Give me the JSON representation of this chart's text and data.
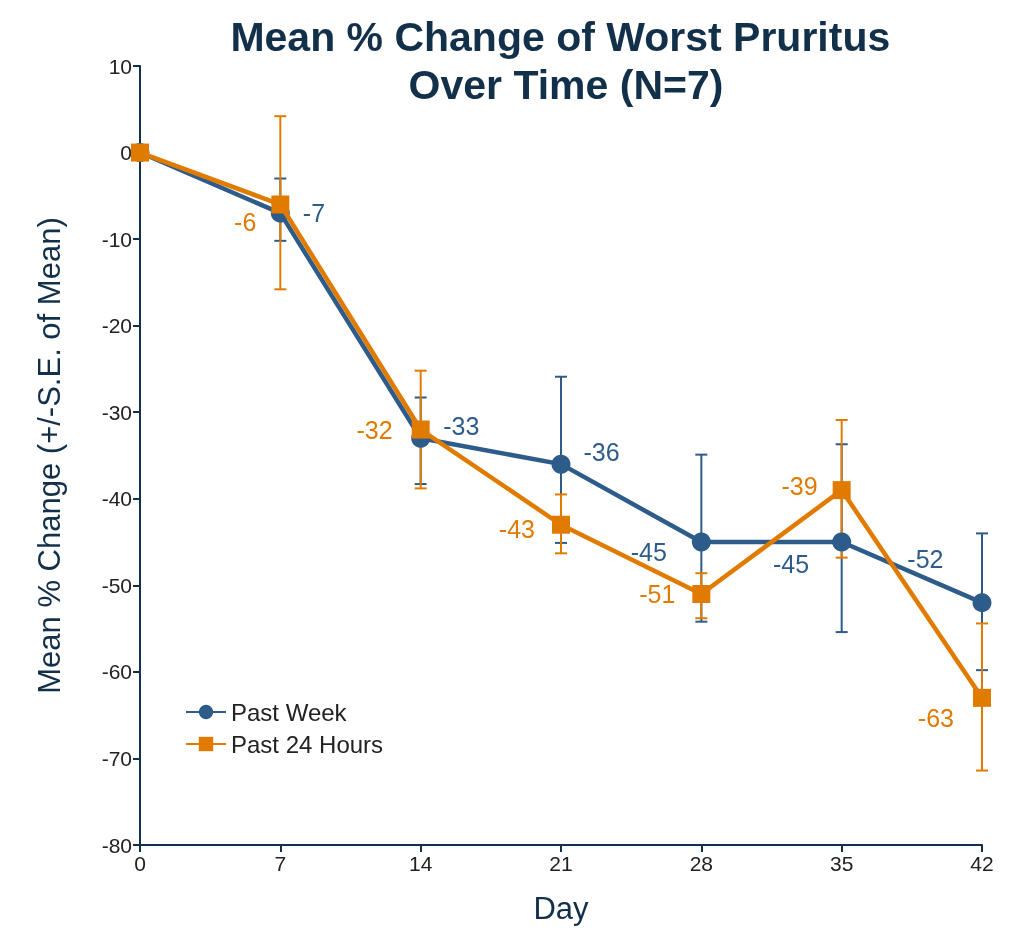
{
  "chart_data": {
    "type": "line",
    "title": "Mean % Change of Worst Pruritus Over Time (N=7)",
    "xlabel": "Day",
    "ylabel": "Mean % Change (+/-S.E. of Mean)",
    "x": [
      0,
      7,
      14,
      21,
      28,
      35,
      42
    ],
    "xlim": [
      0,
      42
    ],
    "xticks": [
      0,
      7,
      14,
      21,
      28,
      35,
      42
    ],
    "ylim": [
      -80,
      10
    ],
    "yticks": [
      -80,
      -70,
      -60,
      -50,
      -40,
      -30,
      -20,
      -10,
      0,
      10
    ],
    "grid": false,
    "legend": "bottom left",
    "line_style": "solid",
    "series": [
      {
        "name": "Past Week",
        "color": "#2e5c8a",
        "marker": "circle",
        "values": [
          0,
          -7,
          -33,
          -36,
          -45,
          -45,
          -52
        ],
        "value_labels": [
          null,
          "-7",
          "-33",
          "-36",
          "-45",
          "-45",
          "-52"
        ],
        "errors": [
          null,
          [
            -10.2,
            -3.0
          ],
          [
            -38.3,
            -28.3
          ],
          [
            -45.1,
            -25.9
          ],
          [
            -54.2,
            -34.9
          ],
          [
            -55.4,
            -33.7
          ],
          [
            -59.8,
            -44.0
          ]
        ]
      },
      {
        "name": "Past 24 Hours",
        "color": "#e07b00",
        "marker": "square",
        "values": [
          0,
          -6,
          -32,
          -43,
          -51,
          -39,
          -63
        ],
        "value_labels": [
          null,
          "-6",
          "-32",
          "-43",
          "-51",
          "-39",
          "-63"
        ],
        "errors": [
          null,
          [
            -15.8,
            4.2
          ],
          [
            -38.8,
            -25.2
          ],
          [
            -46.3,
            -39.5
          ],
          [
            -53.8,
            -48.6
          ],
          [
            -46.8,
            -30.9
          ],
          [
            -71.4,
            -54.4
          ]
        ]
      }
    ]
  }
}
